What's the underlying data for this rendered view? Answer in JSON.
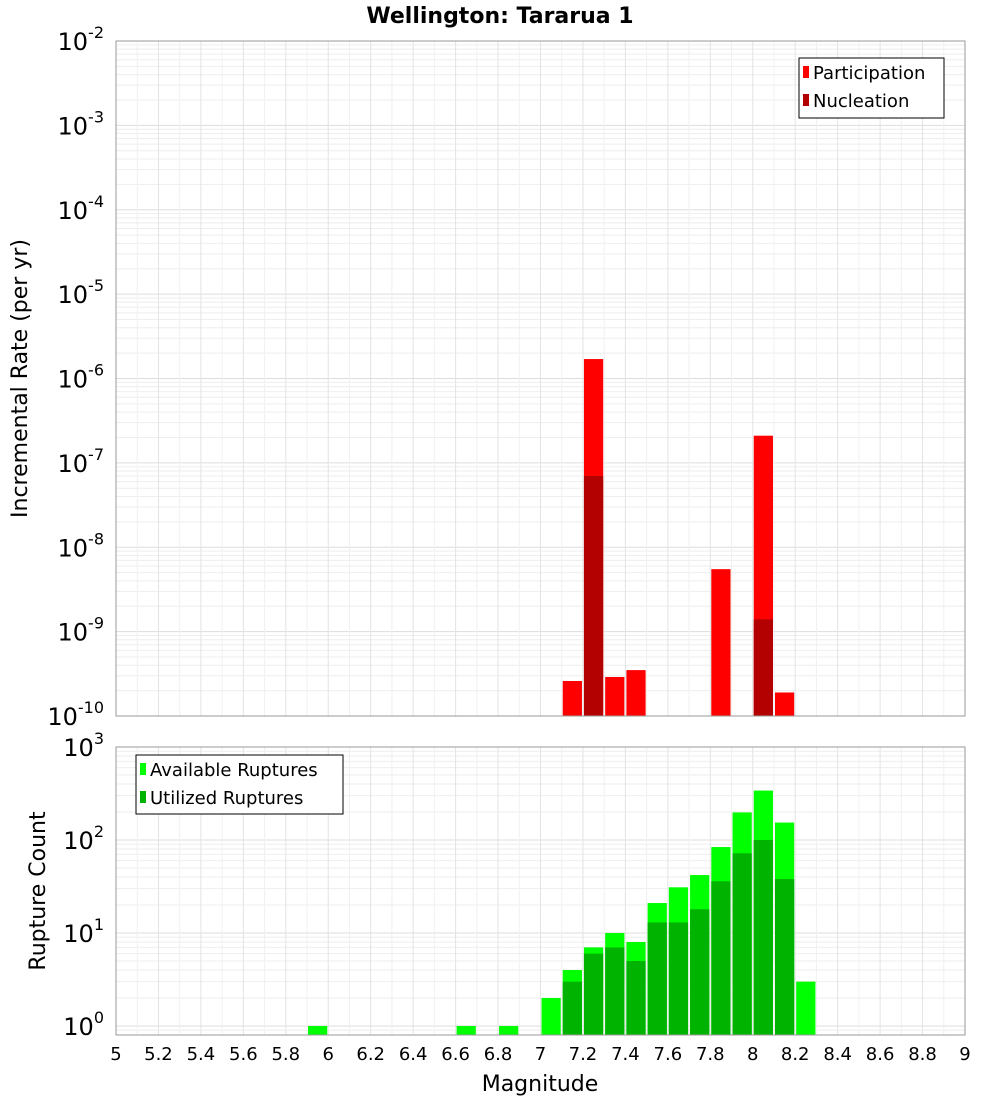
{
  "chart_data": {
    "type": "bar",
    "title": "Wellington: Tararua 1",
    "xlabel": "Magnitude",
    "xlim": [
      5,
      9
    ],
    "x_ticks": [
      "5",
      "5.2",
      "5.4",
      "5.6",
      "5.8",
      "6",
      "6.2",
      "6.4",
      "6.6",
      "6.8",
      "7",
      "7.2",
      "7.4",
      "7.6",
      "7.8",
      "8",
      "8.2",
      "8.4",
      "8.6",
      "8.8",
      "9"
    ],
    "bin_width": 0.1,
    "panels": [
      {
        "ylabel": "Incremental Rate (per yr)",
        "yscale": "log",
        "ylim": [
          1e-10,
          0.01
        ],
        "y_ticks": [
          {
            "base": "10",
            "exp": "-2"
          },
          {
            "base": "10",
            "exp": "-3"
          },
          {
            "base": "10",
            "exp": "-4"
          },
          {
            "base": "10",
            "exp": "-5"
          },
          {
            "base": "10",
            "exp": "-6"
          },
          {
            "base": "10",
            "exp": "-7"
          },
          {
            "base": "10",
            "exp": "-8"
          },
          {
            "base": "10",
            "exp": "-9"
          },
          {
            "base": "10",
            "exp": "-10"
          }
        ],
        "legend_position": "top-right",
        "series": [
          {
            "name": "Participation",
            "color": "#ff0000",
            "x": [
              7.15,
              7.25,
              7.35,
              7.45,
              7.85,
              8.05,
              8.15
            ],
            "values": [
              2.6e-10,
              1.7e-06,
              2.9e-10,
              3.5e-10,
              5.5e-09,
              2.1e-07,
              1.9e-10
            ]
          },
          {
            "name": "Nucleation",
            "color": "#b30000",
            "x": [
              7.25,
              8.05
            ],
            "values": [
              7e-08,
              1.4e-09
            ]
          }
        ]
      },
      {
        "ylabel": "Rupture Count",
        "yscale": "log",
        "ylim": [
          0.8,
          1000
        ],
        "y_ticks": [
          {
            "base": "10",
            "exp": "3"
          },
          {
            "base": "10",
            "exp": "2"
          },
          {
            "base": "10",
            "exp": "1"
          },
          {
            "base": "10",
            "exp": "0"
          }
        ],
        "legend_position": "top-left",
        "series": [
          {
            "name": "Available Ruptures",
            "color": "#00ff00",
            "x": [
              5.95,
              6.65,
              6.85,
              7.05,
              7.15,
              7.25,
              7.35,
              7.45,
              7.55,
              7.65,
              7.75,
              7.85,
              7.95,
              8.05,
              8.15,
              8.25
            ],
            "values": [
              1,
              1,
              1,
              2,
              4,
              7,
              10,
              8,
              21,
              31,
              42,
              84,
              198,
              340,
              154,
              3
            ]
          },
          {
            "name": "Utilized Ruptures",
            "color": "#00b300",
            "x": [
              7.15,
              7.25,
              7.35,
              7.45,
              7.55,
              7.65,
              7.75,
              7.85,
              7.95,
              8.05,
              8.15
            ],
            "values": [
              3,
              6,
              7,
              5,
              13,
              13,
              18,
              36,
              72,
              100,
              38
            ]
          }
        ]
      }
    ]
  }
}
